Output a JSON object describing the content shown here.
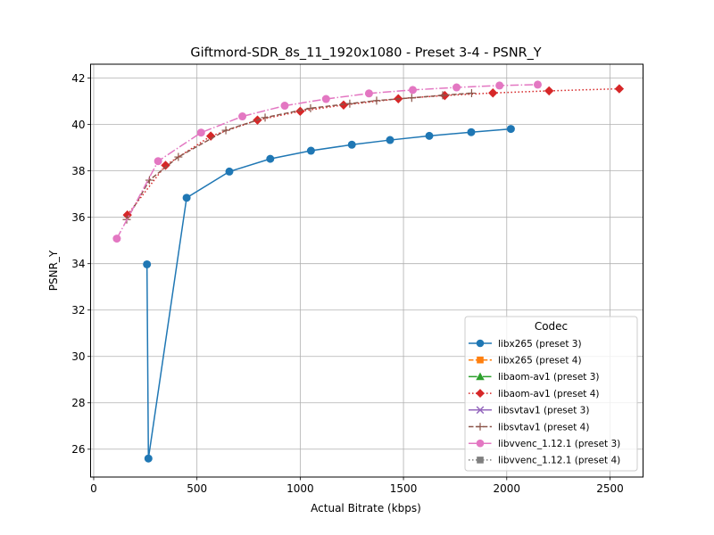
{
  "chart_data": {
    "type": "line",
    "title": "Giftmord-SDR_8s_11_1920x1080 - Preset 3-4 - PSNR_Y",
    "xlabel": "Actual Bitrate (kbps)",
    "ylabel": "PSNR_Y",
    "xlim": [
      -15,
      2660
    ],
    "ylim": [
      24.8,
      42.6
    ],
    "xticks": [
      0,
      500,
      1000,
      1500,
      2000,
      2500
    ],
    "yticks": [
      26,
      28,
      30,
      32,
      34,
      36,
      38,
      40,
      42
    ],
    "grid": true,
    "legend": {
      "title": "Codec",
      "placement": "lower right"
    },
    "series": [
      {
        "name": "libx265 (preset 3)",
        "color": "#1f77b4",
        "marker": "circle",
        "linestyle": "solid",
        "x": [
          258,
          265,
          450,
          657,
          855,
          1052,
          1250,
          1435,
          1625,
          1828,
          2020
        ],
        "y": [
          33.97,
          25.6,
          36.84,
          37.97,
          38.52,
          38.87,
          39.13,
          39.33,
          39.51,
          39.67,
          39.81
        ]
      },
      {
        "name": "libx265 (preset 4)",
        "color": "#ff7f0e",
        "marker": "square",
        "linestyle": "dashed",
        "x": [],
        "y": []
      },
      {
        "name": "libaom-av1 (preset 3)",
        "color": "#2ca02c",
        "marker": "triangle",
        "linestyle": "dashdot",
        "x": [],
        "y": []
      },
      {
        "name": "libaom-av1 (preset 4)",
        "color": "#d62728",
        "marker": "diamond",
        "linestyle": "dotted",
        "x": [
          163,
          348,
          567,
          793,
          1000,
          1210,
          1475,
          1700,
          1933,
          2205,
          2545
        ],
        "y": [
          36.1,
          38.24,
          39.5,
          40.19,
          40.57,
          40.84,
          41.11,
          41.25,
          41.36,
          41.45,
          41.54
        ]
      },
      {
        "name": "libsvtav1 (preset 3)",
        "color": "#9467bd",
        "marker": "x",
        "linestyle": "solid",
        "x": [],
        "y": []
      },
      {
        "name": "libsvtav1 (preset 4)",
        "color": "#8c564b",
        "marker": "plus",
        "linestyle": "dashed",
        "x": [
          160,
          270,
          410,
          640,
          830,
          1050,
          1240,
          1370,
          1540,
          1690,
          1830
        ],
        "y": [
          35.9,
          37.6,
          38.6,
          39.75,
          40.3,
          40.7,
          40.9,
          41.03,
          41.15,
          41.26,
          41.35
        ]
      },
      {
        "name": "libvvenc_1.12.1 (preset 3)",
        "color": "#e377c2",
        "marker": "circle",
        "linestyle": "dashdot",
        "x": [
          112,
          312,
          520,
          720,
          925,
          1125,
          1333,
          1545,
          1757,
          1965,
          2150
        ],
        "y": [
          35.08,
          38.42,
          39.65,
          40.35,
          40.81,
          41.1,
          41.34,
          41.49,
          41.6,
          41.68,
          41.72
        ]
      },
      {
        "name": "libvvenc_1.12.1 (preset 4)",
        "color": "#7f7f7f",
        "marker": "square",
        "linestyle": "dotted",
        "x": [],
        "y": []
      }
    ]
  }
}
